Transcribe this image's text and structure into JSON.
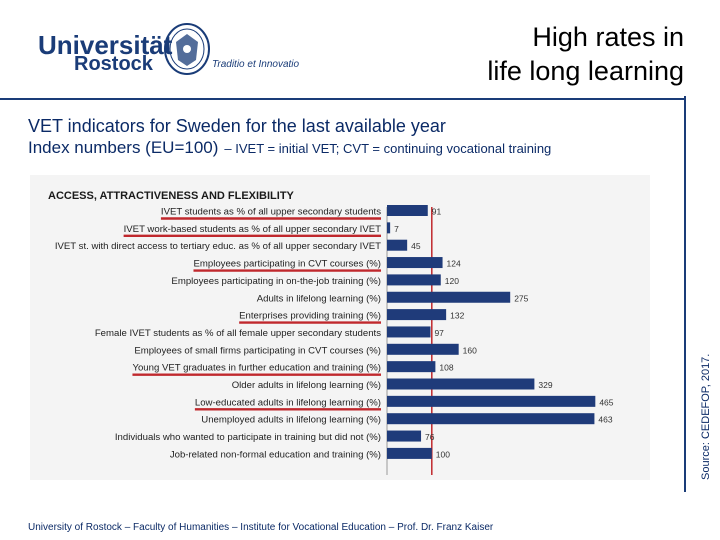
{
  "logo": {
    "name_line1": "Universität",
    "name_line2": "Rostock",
    "motto": "Traditio et Innovatio"
  },
  "title": {
    "line1": "High rates in",
    "line2": "life long learning"
  },
  "subtitle": {
    "line1": "VET indicators for Sweden for the last available year",
    "line2": "Index numbers (EU=100)",
    "note": "– IVET = initial VET; CVT = continuing vocational training"
  },
  "source": "Source: CEDEFOP, 2017.",
  "footer": "University of Rostock – Faculty of Humanities – Institute for Vocational Education – Prof. Dr. Franz Kaiser",
  "colors": {
    "bar": "#1f3b7a",
    "reference_line": "#c0282d",
    "underline": "#c0282d",
    "panel": "#f4f4f4"
  },
  "chart_data": {
    "type": "bar",
    "orientation": "horizontal",
    "title": "ACCESS, ATTRACTIVENESS AND FLEXIBILITY",
    "reference_value": 100,
    "xlim": [
      0,
      500
    ],
    "categories": [
      "IVET students as % of all upper secondary students",
      "IVET work-based students as % of all upper secondary IVET",
      "IVET st. with direct access to tertiary educ. as % of all upper secondary IVET",
      "Employees participating in CVT courses (%)",
      "Employees participating in on-the-job training (%)",
      "Adults in lifelong learning (%)",
      "Enterprises providing training (%)",
      "Female IVET students as % of all female upper secondary students",
      "Employees of small firms participating in CVT courses (%)",
      "Young VET graduates in further education and training (%)",
      "Older adults in lifelong learning (%)",
      "Low-educated adults in lifelong learning (%)",
      "Unemployed adults in lifelong learning (%)",
      "Individuals who wanted to participate in training but did not (%)",
      "Job-related non-formal education and training (%)"
    ],
    "values": [
      91,
      7,
      45,
      124,
      120,
      275,
      132,
      97,
      160,
      108,
      329,
      465,
      463,
      76,
      100
    ],
    "highlighted": [
      true,
      true,
      false,
      true,
      false,
      false,
      true,
      false,
      false,
      true,
      false,
      true,
      false,
      false,
      false
    ]
  }
}
